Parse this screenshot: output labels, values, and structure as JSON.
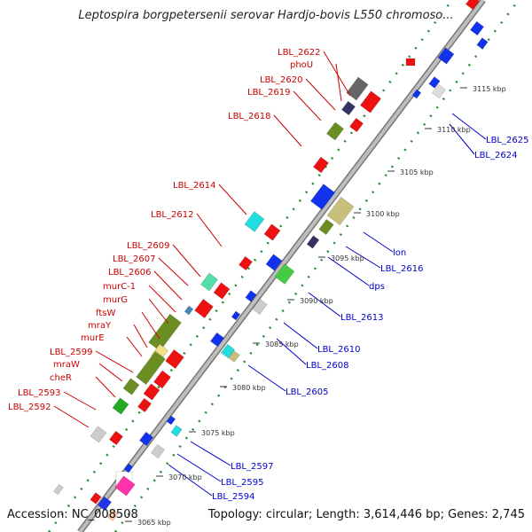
{
  "title": "Leptospira borgpetersenii serovar Hardjo-bovis L550 chromoso...",
  "footer": {
    "accession": "Accession: NC_008508",
    "summary": "Topology: circular; Length: 3,614,446 bp; Genes: 2,745"
  },
  "colors": {
    "label_left": "#cc0000",
    "label_right": "#0000cc",
    "backbone": "#999999",
    "dots": "#228822",
    "tick": "#333333"
  },
  "scale_labels": [
    {
      "text": "3065 kbp"
    },
    {
      "text": "3070 kbp"
    },
    {
      "text": "3075 kbp"
    },
    {
      "text": "3080 kbp"
    },
    {
      "text": "3085 kbp"
    },
    {
      "text": "3090 kbp"
    },
    {
      "text": "3095 kbp"
    },
    {
      "text": "3100 kbp"
    },
    {
      "text": "3105 kbp"
    },
    {
      "text": "3110 kbp"
    },
    {
      "text": "3115 kbp"
    }
  ],
  "left_labels": [
    {
      "text": "LBL_2622"
    },
    {
      "text": "phoU"
    },
    {
      "text": "LBL_2620"
    },
    {
      "text": "LBL_2619"
    },
    {
      "text": "LBL_2618"
    },
    {
      "text": "LBL_2614"
    },
    {
      "text": "LBL_2612"
    },
    {
      "text": "LBL_2609"
    },
    {
      "text": "LBL_2607"
    },
    {
      "text": "LBL_2606"
    },
    {
      "text": "murC-1"
    },
    {
      "text": "murG"
    },
    {
      "text": "ftsW"
    },
    {
      "text": "mraY"
    },
    {
      "text": "murE"
    },
    {
      "text": "LBL_2599"
    },
    {
      "text": "mraW"
    },
    {
      "text": "cheR"
    },
    {
      "text": "LBL_2593"
    },
    {
      "text": "LBL_2592"
    }
  ],
  "right_labels": [
    {
      "text": "LBL_2625"
    },
    {
      "text": "LBL_2624"
    },
    {
      "text": "lon"
    },
    {
      "text": "LBL_2616"
    },
    {
      "text": "dps"
    },
    {
      "text": "LBL_2613"
    },
    {
      "text": "LBL_2610"
    },
    {
      "text": "LBL_2608"
    },
    {
      "text": "LBL_2605"
    },
    {
      "text": "LBL_2597"
    },
    {
      "text": "LBL_2595"
    },
    {
      "text": "LBL_2594"
    }
  ]
}
